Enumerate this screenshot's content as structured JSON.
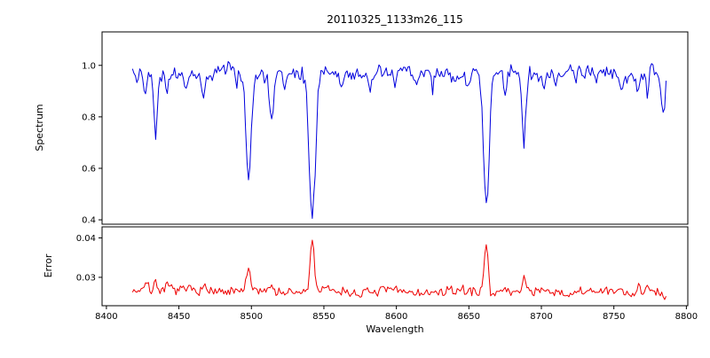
{
  "chart_data": {
    "type": "line",
    "title": "20110325_1133m26_115",
    "xlabel": "Wavelength",
    "xlim": [
      8397,
      8801
    ],
    "xticks": [
      8400,
      8450,
      8500,
      8550,
      8600,
      8650,
      8700,
      8750,
      8800
    ],
    "x_start": 8418,
    "x_end": 8786,
    "x_step": 1,
    "grid": false,
    "legend": "none",
    "panels": [
      {
        "name": "spectrum-panel",
        "ylabel": "Spectrum",
        "ylim": [
          0.383,
          1.13
        ],
        "yticks": [
          {
            "value": 0.4,
            "label": "0.4"
          },
          {
            "value": 0.6,
            "label": "0.6"
          },
          {
            "value": 0.8,
            "label": "0.8"
          },
          {
            "value": 1.0,
            "label": "1.0"
          }
        ],
        "description": "Normalized stellar spectrum (blue) around the Ca II infrared triplet; noisy continuum near 0.97 with strong absorption lines at 8498, 8542 (deepest, ~0.40) and 8662 (~0.44), plus weaker metal lines at 8434, 8514, 8688 etc.",
        "series": {
          "name": "spectrum-line",
          "color": "#0000dd",
          "baseline": 0.97,
          "noise": 0.028,
          "seed": 42,
          "tilt": 0,
          "clamp": [
            0.39,
            1.09
          ],
          "wobble": [
            {
              "amp": 0.01,
              "period": 61,
              "phase": 1.0
            },
            {
              "amp": 0.005,
              "period": 29,
              "phase": 4.0
            }
          ],
          "features": [
            {
              "center": 8421,
              "amp": -0.05,
              "width": 0.9
            },
            {
              "center": 8427,
              "amp": -0.09,
              "width": 1.0
            },
            {
              "center": 8434,
              "amp": -0.24,
              "width": 1.3
            },
            {
              "center": 8442,
              "amp": -0.07,
              "width": 1.0
            },
            {
              "center": 8455,
              "amp": -0.06,
              "width": 1.0
            },
            {
              "center": 8467,
              "amp": -0.09,
              "width": 1.1
            },
            {
              "center": 8490,
              "amp": -0.05,
              "width": 1.0
            },
            {
              "center": 8498,
              "amp": -0.4,
              "width": 1.8
            },
            {
              "center": 8514,
              "amp": -0.19,
              "width": 1.4
            },
            {
              "center": 8523,
              "amp": -0.06,
              "width": 1.0
            },
            {
              "center": 8542,
              "amp": -0.57,
              "width": 2.2
            },
            {
              "center": 8562,
              "amp": -0.05,
              "width": 1.0
            },
            {
              "center": 8582,
              "amp": -0.06,
              "width": 1.0
            },
            {
              "center": 8599,
              "amp": -0.07,
              "width": 1.0
            },
            {
              "center": 8614,
              "amp": -0.05,
              "width": 1.0
            },
            {
              "center": 8625,
              "amp": -0.06,
              "width": 1.0
            },
            {
              "center": 8649,
              "amp": -0.06,
              "width": 1.0
            },
            {
              "center": 8662,
              "amp": -0.52,
              "width": 2.0
            },
            {
              "center": 8675,
              "amp": -0.07,
              "width": 1.0
            },
            {
              "center": 8688,
              "amp": -0.27,
              "width": 1.3
            },
            {
              "center": 8702,
              "amp": -0.04,
              "width": 1.0
            },
            {
              "center": 8710,
              "amp": -0.05,
              "width": 1.0
            },
            {
              "center": 8724,
              "amp": -0.04,
              "width": 1.0
            },
            {
              "center": 8738,
              "amp": -0.05,
              "width": 1.0
            },
            {
              "center": 8755,
              "amp": -0.06,
              "width": 1.0
            },
            {
              "center": 8767,
              "amp": -0.08,
              "width": 1.0
            },
            {
              "center": 8773,
              "amp": -0.09,
              "width": 1.0
            },
            {
              "center": 8784,
              "amp": -0.17,
              "width": 1.4
            }
          ]
        }
      },
      {
        "name": "error-panel",
        "ylabel": "Error",
        "ylim": [
          0.0228,
          0.0428
        ],
        "yticks": [
          {
            "value": 0.03,
            "label": "0.03"
          },
          {
            "value": 0.04,
            "label": "0.04"
          }
        ],
        "description": "Error spectrum (red), flat near 0.0265 with sharp spikes to ~0.041 at the strong absorption lines 8542 and 8662, and smaller spikes at 8434, 8498, 8688.",
        "series": {
          "name": "error-line",
          "color": "#ee0000",
          "baseline": 0.0266,
          "noise": 0.0012,
          "seed": 7,
          "tilt": -0.0005,
          "clamp": [
            0.0235,
            0.0425
          ],
          "wobble": [
            {
              "amp": 0.0004,
              "period": 47,
              "phase": 2.0
            }
          ],
          "features": [
            {
              "center": 8427,
              "amp": 0.002,
              "width": 2.0
            },
            {
              "center": 8434,
              "amp": 0.003,
              "width": 1.3
            },
            {
              "center": 8443,
              "amp": 0.0015,
              "width": 1.5
            },
            {
              "center": 8467,
              "amp": 0.0012,
              "width": 1.2
            },
            {
              "center": 8498,
              "amp": 0.0045,
              "width": 1.5
            },
            {
              "center": 8514,
              "amp": 0.0016,
              "width": 1.2
            },
            {
              "center": 8542,
              "amp": 0.0138,
              "width": 1.3
            },
            {
              "center": 8662,
              "amp": 0.0135,
              "width": 1.3
            },
            {
              "center": 8675,
              "amp": 0.0012,
              "width": 1.0
            },
            {
              "center": 8688,
              "amp": 0.0035,
              "width": 1.2
            },
            {
              "center": 8755,
              "amp": 0.0012,
              "width": 1.2
            },
            {
              "center": 8767,
              "amp": 0.002,
              "width": 1.5
            },
            {
              "center": 8773,
              "amp": 0.0018,
              "width": 1.2
            },
            {
              "center": 8786,
              "amp": -0.0025,
              "width": 2.5
            }
          ]
        }
      }
    ]
  }
}
